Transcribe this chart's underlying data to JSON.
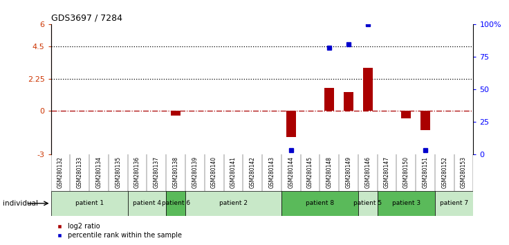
{
  "title": "GDS3697 / 7284",
  "samples": [
    "GSM280132",
    "GSM280133",
    "GSM280134",
    "GSM280135",
    "GSM280136",
    "GSM280137",
    "GSM280138",
    "GSM280139",
    "GSM280140",
    "GSM280141",
    "GSM280142",
    "GSM280143",
    "GSM280144",
    "GSM280145",
    "GSM280148",
    "GSM280149",
    "GSM280146",
    "GSM280147",
    "GSM280150",
    "GSM280151",
    "GSM280152",
    "GSM280153"
  ],
  "log2_ratio": [
    0,
    0,
    0,
    0,
    0,
    0,
    -0.3,
    0,
    0,
    0,
    0,
    0,
    -1.8,
    0,
    1.6,
    1.3,
    3.0,
    0,
    -0.5,
    -1.3,
    0,
    0
  ],
  "percentile": [
    null,
    null,
    null,
    null,
    null,
    null,
    null,
    null,
    null,
    null,
    null,
    null,
    3,
    null,
    82,
    85,
    100,
    null,
    null,
    3,
    null,
    null
  ],
  "patients": [
    {
      "label": "patient 1",
      "start": 0,
      "end": 4,
      "color": "#c8e8c8"
    },
    {
      "label": "patient 4",
      "start": 4,
      "end": 6,
      "color": "#c8e8c8"
    },
    {
      "label": "patient 6",
      "start": 6,
      "end": 7,
      "color": "#5aba5a"
    },
    {
      "label": "patient 2",
      "start": 7,
      "end": 12,
      "color": "#c8e8c8"
    },
    {
      "label": "patient 8",
      "start": 12,
      "end": 16,
      "color": "#5aba5a"
    },
    {
      "label": "patient 5",
      "start": 16,
      "end": 17,
      "color": "#c8e8c8"
    },
    {
      "label": "patient 3",
      "start": 17,
      "end": 20,
      "color": "#5aba5a"
    },
    {
      "label": "patient 7",
      "start": 20,
      "end": 22,
      "color": "#c8e8c8"
    }
  ],
  "ylim_left": [
    -3,
    6
  ],
  "ylim_right": [
    0,
    100
  ],
  "yticks_left": [
    -3,
    0,
    2.25,
    4.5,
    6
  ],
  "yticks_right": [
    0,
    25,
    50,
    75,
    100
  ],
  "hlines_dotted": [
    4.5,
    2.25
  ],
  "hline_dash": 0,
  "bar_color": "#aa0000",
  "dot_color": "#0000cc",
  "bg_color": "#ffffff",
  "plot_bg": "#ffffff",
  "xlab_bg": "#b8b8b8",
  "legend_log2": "log2 ratio",
  "legend_pct": "percentile rank within the sample"
}
